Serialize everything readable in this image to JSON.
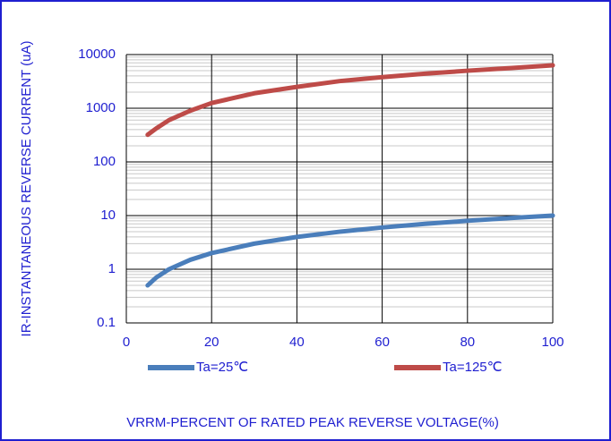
{
  "chart_data": {
    "type": "line",
    "xlabel": "VRRM-PERCENT OF RATED PEAK REVERSE VOLTAGE(%)",
    "ylabel": "IR-INSTANTANEOUS REVERSE CURRENT (uA)",
    "x": [
      5,
      7,
      10,
      15,
      20,
      30,
      40,
      50,
      60,
      70,
      80,
      90,
      100
    ],
    "series": [
      {
        "name": "Ta=25℃",
        "color": "#4a7ebb",
        "values": [
          0.5,
          0.7,
          1.0,
          1.5,
          2,
          3,
          4,
          5,
          6,
          7,
          8,
          9,
          10
        ]
      },
      {
        "name": "Ta=125℃",
        "color": "#be4b48",
        "values": [
          320,
          420,
          600,
          900,
          1250,
          1900,
          2500,
          3200,
          3800,
          4400,
          5000,
          5600,
          6300
        ]
      }
    ],
    "xlim": [
      0,
      100
    ],
    "xticks": [
      0,
      20,
      40,
      60,
      80,
      100
    ],
    "ylim": [
      0.1,
      10000
    ],
    "yticks": [
      0.1,
      1,
      10,
      100,
      1000,
      10000
    ],
    "ylog": true,
    "grid": true,
    "legend": "bottom"
  }
}
